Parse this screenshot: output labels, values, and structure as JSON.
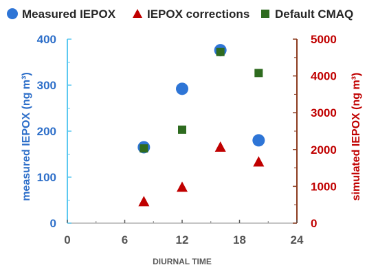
{
  "chart_data": {
    "type": "scatter",
    "xlabel": "DIURNAL TIME",
    "ylabel_left": "measured IEPOX (ng m³)",
    "ylabel_right": "simulated IEPOX (ng m³)",
    "xlim": [
      0,
      24
    ],
    "ylim_left": [
      0,
      400
    ],
    "ylim_right": [
      0,
      5000
    ],
    "x_ticks": [
      "0",
      "6",
      "12",
      "18",
      "24"
    ],
    "y_left_ticks": [
      "0",
      "100",
      "200",
      "300",
      "400"
    ],
    "y_right_ticks": [
      "0",
      "1000",
      "2000",
      "3000",
      "4000",
      "5000"
    ],
    "grid": false,
    "legend_position": "top",
    "series": [
      {
        "name": "Measured IEPOX",
        "axis": "left",
        "marker": "circle",
        "color": "#2e75d6",
        "x": [
          8,
          12,
          16,
          20
        ],
        "y": [
          165,
          292,
          376,
          180
        ]
      },
      {
        "name": "IEPOX corrections",
        "axis": "right",
        "marker": "triangle",
        "color": "#c00000",
        "x": [
          8,
          12,
          16,
          20
        ],
        "y": [
          600,
          990,
          2080,
          1680
        ]
      },
      {
        "name": "Default CMAQ",
        "axis": "right",
        "marker": "square",
        "color": "#2e6b1f",
        "x": [
          8,
          12,
          16,
          20
        ],
        "y": [
          2030,
          2540,
          4650,
          4080
        ]
      }
    ],
    "colors": {
      "left_axis": "#2e6fc9",
      "left_axis_line": "#5bc8f0",
      "right_axis": "#c00000",
      "right_axis_line": "#8b3a1e",
      "x_axis_line": "#b0b0b0"
    }
  }
}
